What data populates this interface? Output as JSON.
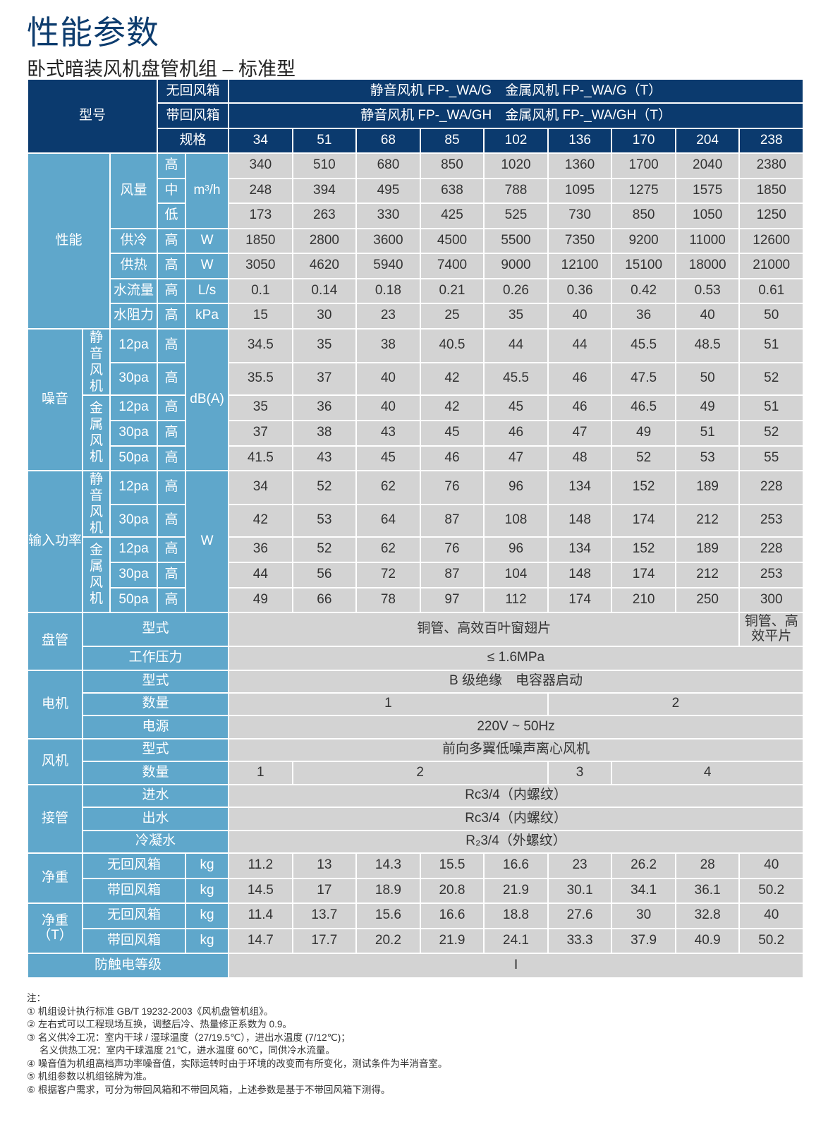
{
  "title": "性能参数",
  "subtitle": "卧式暗装风机盘管机组 – 标准型",
  "colors": {
    "header_dark": "#0b3a6e",
    "label_blue": "#5fa7cb",
    "data_gray": "#d3d3d3",
    "title": "#0d3c6e"
  },
  "header": {
    "model_label": "型号",
    "no_return": "无回风箱",
    "no_return_models": "静音风机 FP-_WA/G　金属风机 FP-_WA/G（T）",
    "with_return": "带回风箱",
    "with_return_models": "静音风机 FP-_WA/GH　金属风机 FP-_WA/GH（T）",
    "spec_label": "规格",
    "specs": [
      "34",
      "51",
      "68",
      "85",
      "102",
      "136",
      "170",
      "204",
      "238"
    ]
  },
  "performance": {
    "label": "性能",
    "airflow": {
      "label": "风量",
      "unit": "m³/h",
      "rows": [
        {
          "level": "高",
          "values": [
            "340",
            "510",
            "680",
            "850",
            "1020",
            "1360",
            "1700",
            "2040",
            "2380"
          ]
        },
        {
          "level": "中",
          "values": [
            "248",
            "394",
            "495",
            "638",
            "788",
            "1095",
            "1275",
            "1575",
            "1850"
          ]
        },
        {
          "level": "低",
          "values": [
            "173",
            "263",
            "330",
            "425",
            "525",
            "730",
            "850",
            "1050",
            "1250"
          ]
        }
      ]
    },
    "others": [
      {
        "name": "供冷",
        "level": "高",
        "unit": "W",
        "values": [
          "1850",
          "2800",
          "3600",
          "4500",
          "5500",
          "7350",
          "9200",
          "11000",
          "12600"
        ]
      },
      {
        "name": "供热",
        "level": "高",
        "unit": "W",
        "values": [
          "3050",
          "4620",
          "5940",
          "7400",
          "9000",
          "12100",
          "15100",
          "18000",
          "21000"
        ]
      },
      {
        "name": "水流量",
        "level": "高",
        "unit": "L/s",
        "values": [
          "0.1",
          "0.14",
          "0.18",
          "0.21",
          "0.26",
          "0.36",
          "0.42",
          "0.53",
          "0.61"
        ]
      },
      {
        "name": "水阻力",
        "level": "高",
        "unit": "kPa",
        "values": [
          "15",
          "30",
          "23",
          "25",
          "35",
          "40",
          "36",
          "40",
          "50"
        ]
      }
    ]
  },
  "noise": {
    "label": "噪音",
    "unit": "dB(A)",
    "groups": [
      {
        "name": "静音风机",
        "rows": [
          {
            "pressure": "12pa",
            "level": "高",
            "values": [
              "34.5",
              "35",
              "38",
              "40.5",
              "44",
              "44",
              "45.5",
              "48.5",
              "51"
            ]
          },
          {
            "pressure": "30pa",
            "level": "高",
            "values": [
              "35.5",
              "37",
              "40",
              "42",
              "45.5",
              "46",
              "47.5",
              "50",
              "52"
            ]
          }
        ]
      },
      {
        "name": "金属风机",
        "rows": [
          {
            "pressure": "12pa",
            "level": "高",
            "values": [
              "35",
              "36",
              "40",
              "42",
              "45",
              "46",
              "46.5",
              "49",
              "51"
            ]
          },
          {
            "pressure": "30pa",
            "level": "高",
            "values": [
              "37",
              "38",
              "43",
              "45",
              "46",
              "47",
              "49",
              "51",
              "52"
            ]
          },
          {
            "pressure": "50pa",
            "level": "高",
            "values": [
              "41.5",
              "43",
              "45",
              "46",
              "47",
              "48",
              "52",
              "53",
              "55"
            ]
          }
        ]
      }
    ]
  },
  "power": {
    "label": "输入功率",
    "unit": "W",
    "groups": [
      {
        "name": "静音风机",
        "rows": [
          {
            "pressure": "12pa",
            "level": "高",
            "values": [
              "34",
              "52",
              "62",
              "76",
              "96",
              "134",
              "152",
              "189",
              "228"
            ]
          },
          {
            "pressure": "30pa",
            "level": "高",
            "values": [
              "42",
              "53",
              "64",
              "87",
              "108",
              "148",
              "174",
              "212",
              "253"
            ]
          }
        ]
      },
      {
        "name": "金属风机",
        "rows": [
          {
            "pressure": "12pa",
            "level": "高",
            "values": [
              "36",
              "52",
              "62",
              "76",
              "96",
              "134",
              "152",
              "189",
              "228"
            ]
          },
          {
            "pressure": "30pa",
            "level": "高",
            "values": [
              "44",
              "56",
              "72",
              "87",
              "104",
              "148",
              "174",
              "212",
              "253"
            ]
          },
          {
            "pressure": "50pa",
            "level": "高",
            "values": [
              "49",
              "66",
              "78",
              "97",
              "112",
              "174",
              "210",
              "250",
              "300"
            ]
          }
        ]
      }
    ]
  },
  "coil": {
    "label": "盘管",
    "type_label": "型式",
    "type_value": "铜管、高效百叶窗翅片",
    "type_value_last": "铜管、高效平片",
    "pressure_label": "工作压力",
    "pressure_value": "≤ 1.6MPa"
  },
  "motor": {
    "label": "电机",
    "type_label": "型式",
    "type_value": "B 级绝缘　电容器启动",
    "qty_label": "数量",
    "qty_values": [
      "1",
      "2"
    ],
    "power_label": "电源",
    "power_value": "220V ~ 50Hz"
  },
  "fan": {
    "label": "风机",
    "type_label": "型式",
    "type_value": "前向多翼低噪声离心风机",
    "qty_label": "数量",
    "qty_values": [
      "1",
      "2",
      "3",
      "4"
    ]
  },
  "piping": {
    "label": "接管",
    "rows": [
      {
        "label": "进水",
        "value": "Rc3/4（内螺纹）"
      },
      {
        "label": "出水",
        "value": "Rc3/4（内螺纹）"
      },
      {
        "label": "冷凝水",
        "value": "R₂3/4（外螺纹）"
      }
    ]
  },
  "net_weight": {
    "label": "净重",
    "unit": "kg",
    "rows": [
      {
        "label": "无回风箱",
        "values": [
          "11.2",
          "13",
          "14.3",
          "15.5",
          "16.6",
          "23",
          "26.2",
          "28",
          "40"
        ]
      },
      {
        "label": "带回风箱",
        "values": [
          "14.5",
          "17",
          "18.9",
          "20.8",
          "21.9",
          "30.1",
          "34.1",
          "36.1",
          "50.2"
        ]
      }
    ]
  },
  "net_weight_t": {
    "label": "净重（T）",
    "unit": "kg",
    "rows": [
      {
        "label": "无回风箱",
        "values": [
          "11.4",
          "13.7",
          "15.6",
          "16.6",
          "18.8",
          "27.6",
          "30",
          "32.8",
          "40"
        ]
      },
      {
        "label": "带回风箱",
        "values": [
          "14.7",
          "17.7",
          "20.2",
          "21.9",
          "24.1",
          "33.3",
          "37.9",
          "40.9",
          "50.2"
        ]
      }
    ]
  },
  "shock": {
    "label": "防触电等级",
    "value": "Ⅰ"
  },
  "notes": {
    "heading": "注：",
    "items": [
      "① 机组设计执行标准 GB/T 19232-2003《风机盘管机组》。",
      "② 左右式可以工程现场互换，调整后冷、热量修正系数为 0.9。",
      "③ 名义供冷工况：室内干球 / 湿球温度（27/19.5℃），进出水温度 (7/12℃)；",
      "名义供热工况：室内干球温度 21℃，进水温度 60℃，同供冷水流量。",
      "④ 噪音值为机组高档声功率噪音值，实际运转时由于环境的改变而有所变化，测试条件为半消音室。",
      "⑤ 机组参数以机组铭牌为准。",
      "⑥ 根据客户需求，可分为带回风箱和不带回风箱，上述参数是基于不带回风箱下测得。"
    ]
  }
}
